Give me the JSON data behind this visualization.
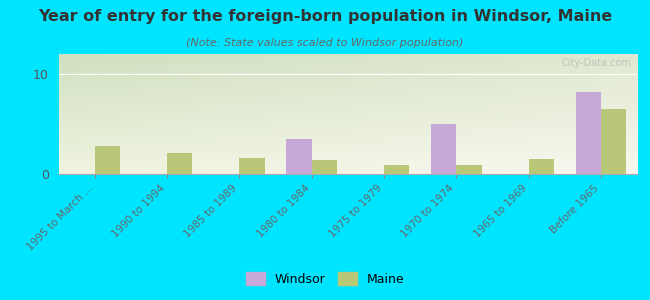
{
  "title": "Year of entry for the foreign-born population in Windsor, Maine",
  "subtitle": "(Note: State values scaled to Windsor population)",
  "categories": [
    "1995 to March ...",
    "1990 to 1994",
    "1985 to 1989",
    "1980 to 1984",
    "1975 to 1979",
    "1970 to 1974",
    "1965 to 1969",
    "Before 1965"
  ],
  "windsor_values": [
    0,
    0,
    0,
    3.5,
    0,
    5.0,
    0,
    8.2
  ],
  "maine_values": [
    2.8,
    2.1,
    1.6,
    1.4,
    0.9,
    0.9,
    1.5,
    6.5
  ],
  "windsor_color": "#c8a8d8",
  "maine_color": "#b8c878",
  "outer_background": "#00e5ff",
  "ylim": [
    0,
    12
  ],
  "yticks": [
    0,
    10
  ],
  "bar_width": 0.35,
  "watermark": "City-Data.com",
  "legend_windsor": "Windsor",
  "legend_maine": "Maine",
  "title_fontsize": 11.5,
  "subtitle_fontsize": 8,
  "tick_label_fontsize": 7.5,
  "ytick_fontsize": 9
}
